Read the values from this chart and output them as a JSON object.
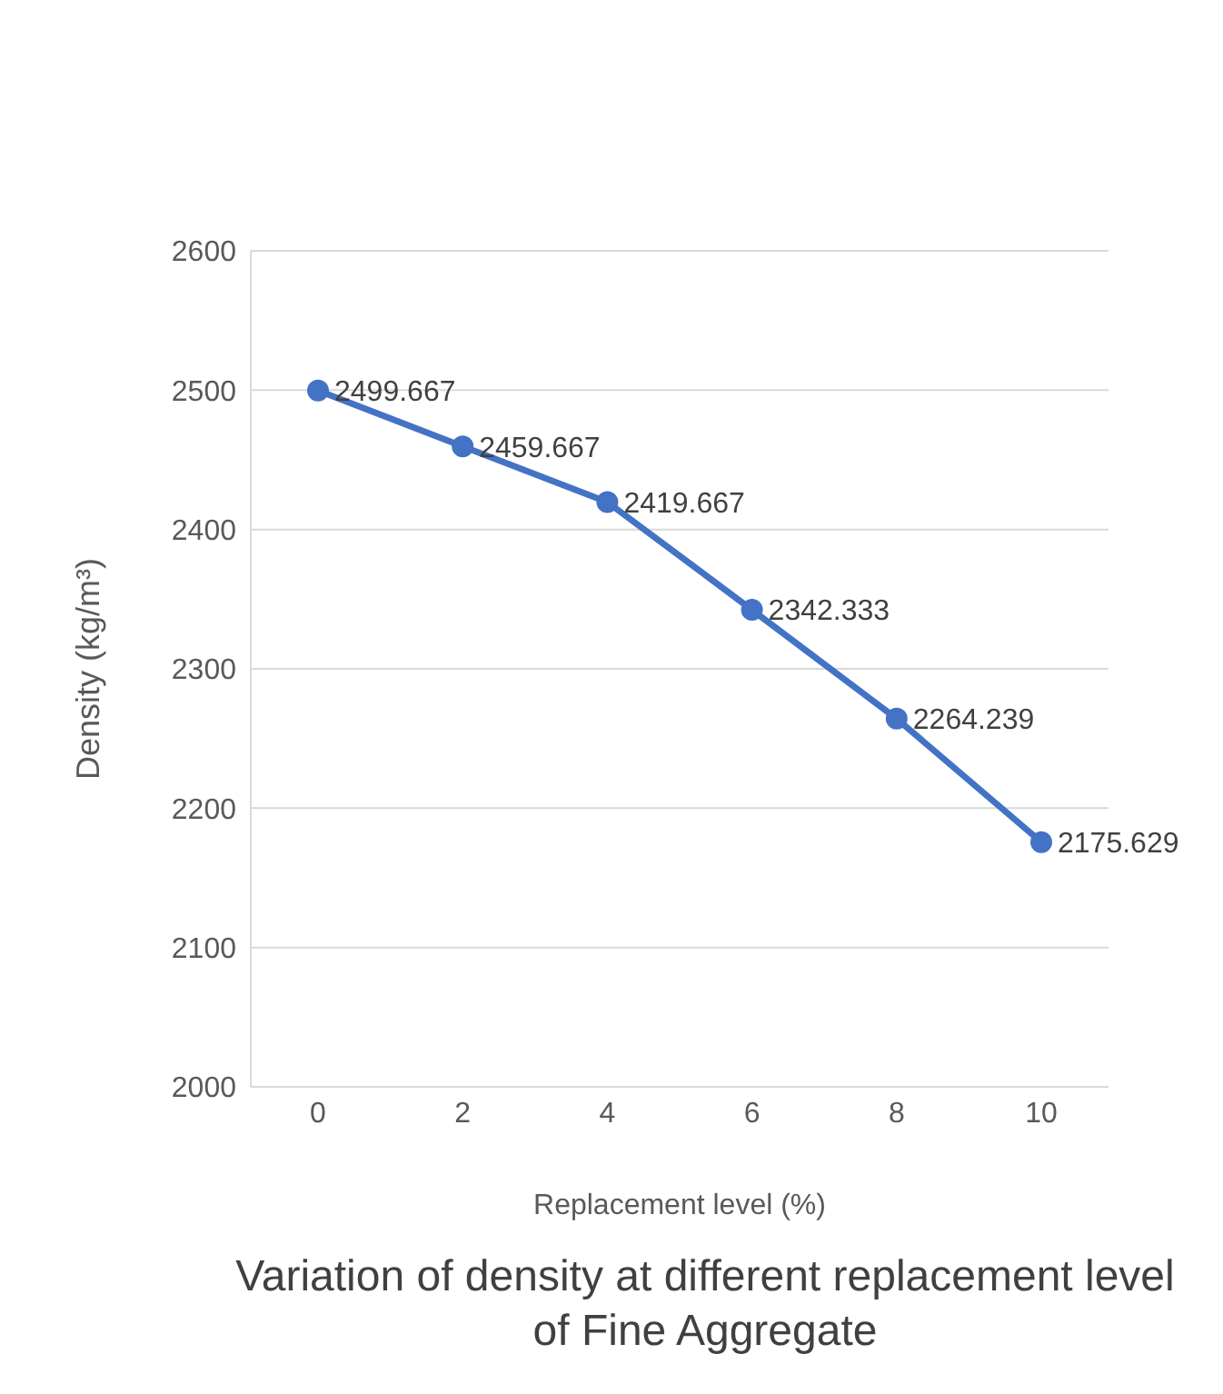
{
  "chart_data": {
    "type": "line",
    "title": "Variation of density at different replacement level of Fine Aggregate",
    "xlabel": "Replacement level (%)",
    "ylabel": "Density (kg/m³)",
    "categories": [
      "0",
      "2",
      "4",
      "6",
      "8",
      "10"
    ],
    "series": [
      {
        "color": "#4472c4",
        "values": [
          2499.667,
          2459.667,
          2419.667,
          2342.333,
          2264.239,
          2175.629
        ]
      }
    ],
    "ylim": [
      2000,
      2600
    ],
    "yticks": [
      2000,
      2100,
      2200,
      2300,
      2400,
      2500,
      2600
    ],
    "grid": "y",
    "marker": "circle",
    "line_style": "solid",
    "data_labels": true
  }
}
